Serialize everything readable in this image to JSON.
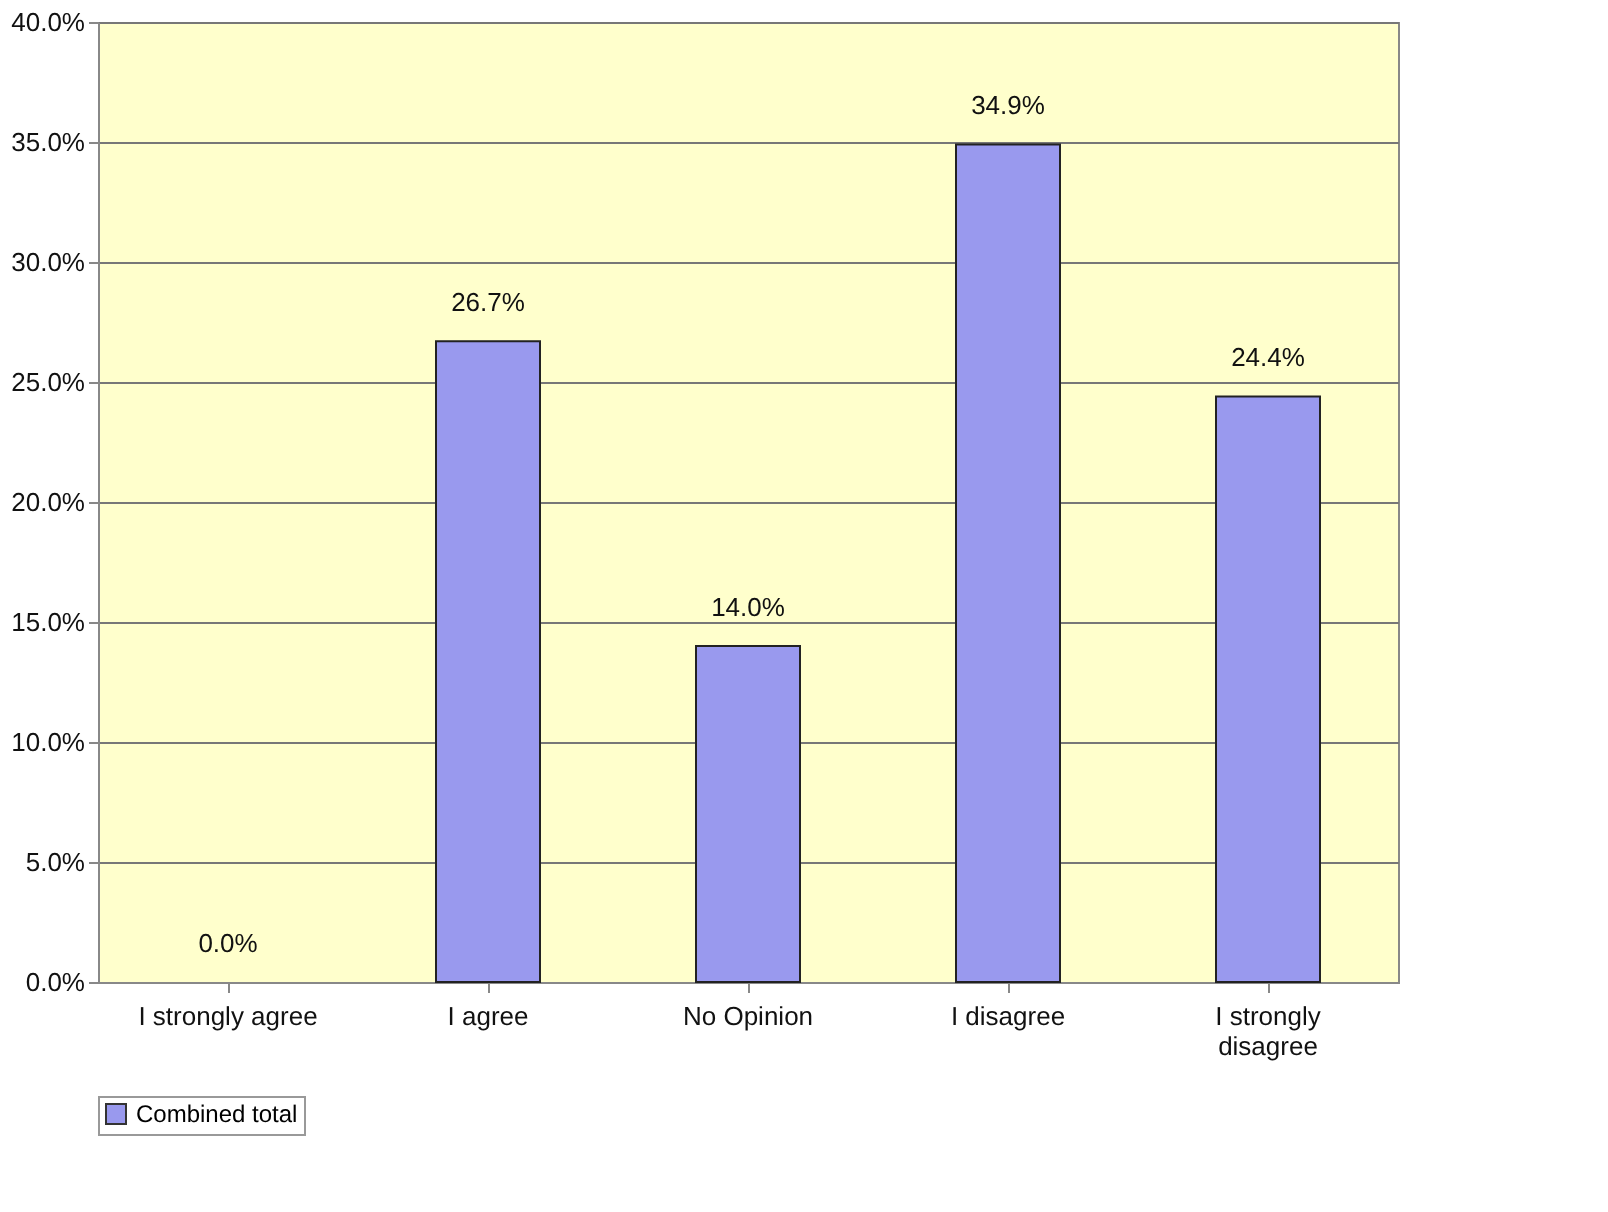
{
  "chart_data": {
    "type": "bar",
    "categories": [
      "I strongly agree",
      "I agree",
      "No Opinion",
      "I disagree",
      "I strongly disagree"
    ],
    "series": [
      {
        "name": "Combined total",
        "color": "#9999ee",
        "values": [
          0.0,
          26.7,
          14.0,
          34.9,
          24.4
        ],
        "value_labels": [
          "0.0%",
          "26.7%",
          "14.0%",
          "34.9%",
          "24.4%"
        ]
      }
    ],
    "ylim": [
      0,
      40
    ],
    "yticks": [
      {
        "value": 0,
        "label": "0.0%"
      },
      {
        "value": 5,
        "label": "5.0%"
      },
      {
        "value": 10,
        "label": "10.0%"
      },
      {
        "value": 15,
        "label": "15.0%"
      },
      {
        "value": 20,
        "label": "20.0%"
      },
      {
        "value": 25,
        "label": "25.0%"
      },
      {
        "value": 30,
        "label": "30.0%"
      },
      {
        "value": 35,
        "label": "35.0%"
      },
      {
        "value": 40,
        "label": "40.0%"
      }
    ],
    "grid": "y",
    "legend": "bottom"
  }
}
